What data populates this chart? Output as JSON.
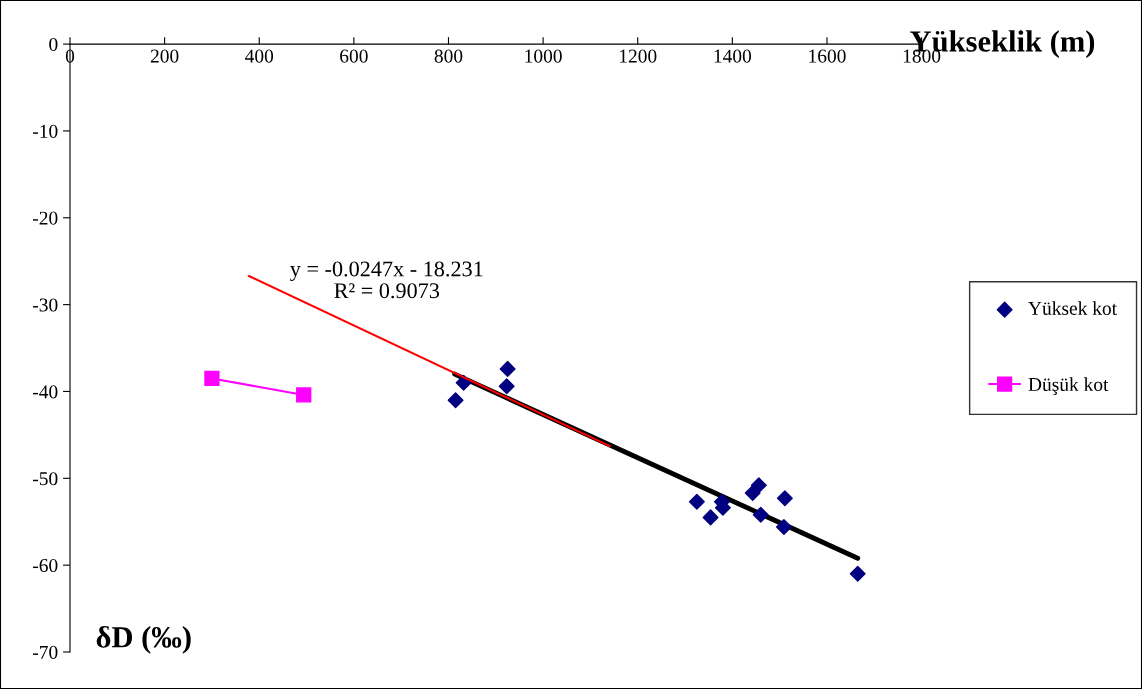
{
  "chart_data": {
    "type": "scatter",
    "xlabel": "Yükseklik (m)",
    "ylabel": "δD (‰)",
    "xlim": [
      0,
      1800
    ],
    "xticks": [
      0,
      200,
      400,
      600,
      800,
      1000,
      1200,
      1400,
      1600,
      1800
    ],
    "ylim": [
      -70,
      0
    ],
    "yticks": [
      -70,
      -60,
      -50,
      -40,
      -30,
      -20,
      -10,
      0
    ],
    "grid": false,
    "legend": "right",
    "annotations": [
      "y = -0.0247x - 18.231\nR² = 0.9073"
    ],
    "series": [
      {
        "name": "Yüksek kot",
        "marker": "diamond",
        "color": "#000080",
        "x": [
          815,
          832,
          925,
          923,
          1325,
          1354,
          1378,
          1380,
          1443,
          1456,
          1460,
          1511,
          1509,
          1665
        ],
        "values": [
          -41.0,
          -39.0,
          -37.4,
          -39.4,
          -52.7,
          -54.5,
          -52.7,
          -53.4,
          -51.7,
          -50.8,
          -54.2,
          -52.3,
          -55.6,
          -61.0
        ]
      },
      {
        "name": "Düşük kot",
        "type": "line",
        "marker": "square",
        "color": "#ff00ff",
        "x": [
          300,
          494
        ],
        "values": [
          -38.5,
          -40.4
        ]
      },
      {
        "type": "line",
        "marker": "none",
        "color": "#000000",
        "x": [
          813,
          1665
        ],
        "values": [
          -38.0,
          -59.2
        ]
      },
      {
        "type": "line",
        "marker": "none",
        "color": "#ff0000",
        "x": [
          378,
          1141
        ],
        "values": [
          -26.7,
          -46.3
        ]
      }
    ]
  }
}
